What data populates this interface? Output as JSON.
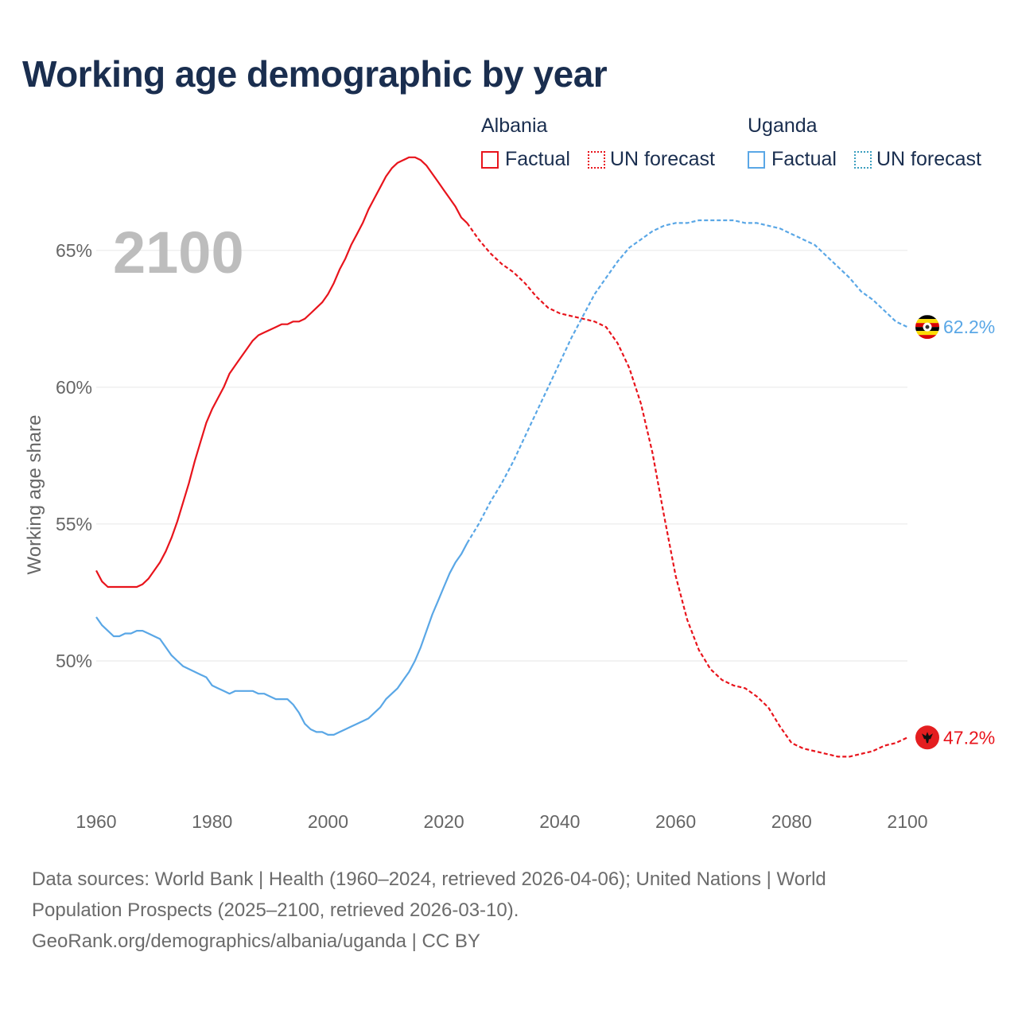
{
  "title": "Working age demographic by year",
  "legend": {
    "albania": {
      "name": "Albania",
      "factual": "Factual",
      "forecast": "UN forecast"
    },
    "uganda": {
      "name": "Uganda",
      "factual": "Factual",
      "forecast": "UN forecast"
    }
  },
  "footer": {
    "line1": "Data sources: World Bank | Health (1960–2024, retrieved 2026-04-06); United Nations | World",
    "line2": "Population Prospects (2025–2100, retrieved 2026-03-10).",
    "line3": "GeoRank.org/demographics/albania/uganda | CC BY"
  },
  "colors": {
    "albania": "#e8141c",
    "uganda": "#5aa7e6",
    "grid": "#e6e6e6",
    "axis_text": "#666666",
    "year_watermark": "#bdbdbd"
  },
  "chart_data": {
    "type": "line",
    "year_label": "2100",
    "ylabel": "Working age share",
    "xlim": [
      1960,
      2100
    ],
    "ylim": [
      45,
      67
    ],
    "x_ticks": [
      1960,
      1980,
      2000,
      2020,
      2040,
      2060,
      2080,
      2100
    ],
    "x_tick_labels": [
      "1960",
      "1980",
      "2000",
      "2020",
      "2040",
      "2060",
      "2080",
      "2100"
    ],
    "y_ticks": [
      50,
      55,
      60,
      65
    ],
    "y_tick_labels": [
      "50%",
      "55%",
      "60%",
      "65%"
    ],
    "series": [
      {
        "name": "Albania",
        "color_key": "albania",
        "end_label": "47.2%",
        "flag_icon": "albania-flag-icon",
        "factual": {
          "x": [
            1960,
            1961,
            1962,
            1963,
            1964,
            1965,
            1966,
            1967,
            1968,
            1969,
            1970,
            1971,
            1972,
            1973,
            1974,
            1975,
            1976,
            1977,
            1978,
            1979,
            1980,
            1981,
            1982,
            1983,
            1984,
            1985,
            1986,
            1987,
            1988,
            1989,
            1990,
            1991,
            1992,
            1993,
            1994,
            1995,
            1996,
            1997,
            1998,
            1999,
            2000,
            2001,
            2002,
            2003,
            2004,
            2005,
            2006,
            2007,
            2008,
            2009,
            2010,
            2011,
            2012,
            2013,
            2014,
            2015,
            2016,
            2017,
            2018,
            2019,
            2020,
            2021,
            2022,
            2023,
            2024
          ],
          "y": [
            53.3,
            52.9,
            52.7,
            52.7,
            52.7,
            52.7,
            52.7,
            52.7,
            52.8,
            53.0,
            53.3,
            53.6,
            54.0,
            54.5,
            55.1,
            55.8,
            56.5,
            57.3,
            58.0,
            58.7,
            59.2,
            59.6,
            60.0,
            60.5,
            60.8,
            61.1,
            61.4,
            61.7,
            61.9,
            62.0,
            62.1,
            62.2,
            62.3,
            62.3,
            62.4,
            62.4,
            62.5,
            62.7,
            62.9,
            63.1,
            63.4,
            63.8,
            64.3,
            64.7,
            65.2,
            65.6,
            66.0,
            66.5,
            66.9,
            67.3,
            67.7,
            68.0,
            68.2,
            68.3,
            68.4,
            68.4,
            68.3,
            68.1,
            67.8,
            67.5,
            67.2,
            66.9,
            66.6,
            66.2,
            66.0
          ]
        },
        "forecast": {
          "x": [
            2024,
            2026,
            2028,
            2030,
            2032,
            2034,
            2036,
            2038,
            2040,
            2042,
            2044,
            2046,
            2048,
            2050,
            2052,
            2054,
            2056,
            2058,
            2060,
            2062,
            2064,
            2066,
            2068,
            2070,
            2072,
            2074,
            2076,
            2078,
            2080,
            2082,
            2084,
            2086,
            2088,
            2090,
            2092,
            2094,
            2096,
            2098,
            2100
          ],
          "y": [
            66.0,
            65.4,
            64.9,
            64.5,
            64.2,
            63.8,
            63.3,
            62.9,
            62.7,
            62.6,
            62.5,
            62.4,
            62.2,
            61.6,
            60.7,
            59.4,
            57.6,
            55.3,
            53.1,
            51.5,
            50.4,
            49.7,
            49.3,
            49.1,
            49.0,
            48.7,
            48.3,
            47.6,
            47.0,
            46.8,
            46.7,
            46.6,
            46.5,
            46.5,
            46.6,
            46.7,
            46.9,
            47.0,
            47.2
          ]
        }
      },
      {
        "name": "Uganda",
        "color_key": "uganda",
        "end_label": "62.2%",
        "flag_icon": "uganda-flag-icon",
        "factual": {
          "x": [
            1960,
            1961,
            1962,
            1963,
            1964,
            1965,
            1966,
            1967,
            1968,
            1969,
            1970,
            1971,
            1972,
            1973,
            1974,
            1975,
            1976,
            1977,
            1978,
            1979,
            1980,
            1981,
            1982,
            1983,
            1984,
            1985,
            1986,
            1987,
            1988,
            1989,
            1990,
            1991,
            1992,
            1993,
            1994,
            1995,
            1996,
            1997,
            1998,
            1999,
            2000,
            2001,
            2002,
            2003,
            2004,
            2005,
            2006,
            2007,
            2008,
            2009,
            2010,
            2011,
            2012,
            2013,
            2014,
            2015,
            2016,
            2017,
            2018,
            2019,
            2020,
            2021,
            2022,
            2023,
            2024
          ],
          "y": [
            51.6,
            51.3,
            51.1,
            50.9,
            50.9,
            51.0,
            51.0,
            51.1,
            51.1,
            51.0,
            50.9,
            50.8,
            50.5,
            50.2,
            50.0,
            49.8,
            49.7,
            49.6,
            49.5,
            49.4,
            49.1,
            49.0,
            48.9,
            48.8,
            48.9,
            48.9,
            48.9,
            48.9,
            48.8,
            48.8,
            48.7,
            48.6,
            48.6,
            48.6,
            48.4,
            48.1,
            47.7,
            47.5,
            47.4,
            47.4,
            47.3,
            47.3,
            47.4,
            47.5,
            47.6,
            47.7,
            47.8,
            47.9,
            48.1,
            48.3,
            48.6,
            48.8,
            49.0,
            49.3,
            49.6,
            50.0,
            50.5,
            51.1,
            51.7,
            52.2,
            52.7,
            53.2,
            53.6,
            53.9,
            54.3
          ]
        },
        "forecast": {
          "x": [
            2024,
            2026,
            2028,
            2030,
            2032,
            2034,
            2036,
            2038,
            2040,
            2042,
            2044,
            2046,
            2048,
            2050,
            2052,
            2054,
            2056,
            2058,
            2060,
            2062,
            2064,
            2066,
            2068,
            2070,
            2072,
            2074,
            2076,
            2078,
            2080,
            2082,
            2084,
            2086,
            2088,
            2090,
            2092,
            2094,
            2096,
            2098,
            2100
          ],
          "y": [
            54.3,
            55.0,
            55.8,
            56.5,
            57.3,
            58.2,
            59.1,
            60.0,
            60.9,
            61.8,
            62.6,
            63.4,
            64.0,
            64.6,
            65.1,
            65.4,
            65.7,
            65.9,
            66.0,
            66.0,
            66.1,
            66.1,
            66.1,
            66.1,
            66.0,
            66.0,
            65.9,
            65.8,
            65.6,
            65.4,
            65.2,
            64.8,
            64.4,
            64.0,
            63.5,
            63.2,
            62.8,
            62.4,
            62.2
          ]
        }
      }
    ]
  }
}
